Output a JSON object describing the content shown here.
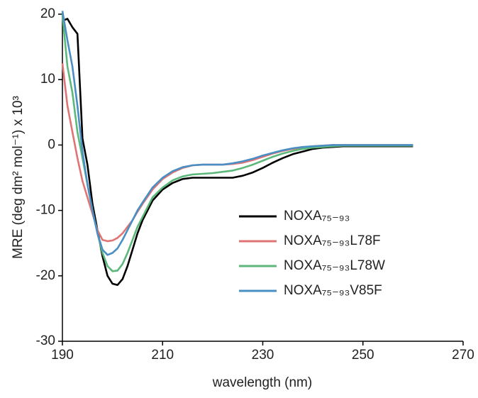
{
  "chart_data": {
    "type": "line",
    "x_label": "wavelength (nm)",
    "y_label": "MRE (deg dm² mol⁻¹) x 10³",
    "x": [
      190,
      191,
      192,
      193,
      194,
      195,
      196,
      197,
      198,
      199,
      200,
      201,
      202,
      203,
      204,
      205,
      206,
      208,
      210,
      212,
      214,
      216,
      218,
      220,
      222,
      224,
      226,
      228,
      230,
      232,
      234,
      236,
      238,
      240,
      242,
      244,
      246,
      248,
      250,
      255,
      260
    ],
    "series": [
      {
        "name": "NOXA₇₅₋₉₃",
        "color": "#000000",
        "values": [
          19,
          19.3,
          18,
          17,
          1,
          -3,
          -9,
          -13,
          -17,
          -20,
          -21.2,
          -21.4,
          -20.5,
          -18.5,
          -16,
          -13.5,
          -11.5,
          -8.5,
          -6.8,
          -5.8,
          -5.2,
          -5,
          -5,
          -5,
          -5,
          -5,
          -4.7,
          -4.2,
          -3.5,
          -2.7,
          -2,
          -1.4,
          -1,
          -0.6,
          -0.4,
          -0.3,
          -0.2,
          -0.2,
          -0.2,
          -0.2,
          -0.2
        ]
      },
      {
        "name": "NOXA₇₅₋₉₃L78F",
        "color": "#e07474",
        "values": [
          12.5,
          6,
          2,
          -2,
          -5.5,
          -8,
          -10.5,
          -13,
          -14.5,
          -14.7,
          -14.6,
          -14.2,
          -13.5,
          -12.5,
          -11.5,
          -10.2,
          -9,
          -6.8,
          -5.2,
          -4.2,
          -3.5,
          -3.1,
          -3,
          -3,
          -3,
          -2.9,
          -2.7,
          -2.3,
          -1.8,
          -1.3,
          -0.9,
          -0.6,
          -0.4,
          -0.2,
          -0.1,
          0,
          0,
          0,
          0,
          0,
          0
        ]
      },
      {
        "name": "NOXA₇₅₋₉₃L78W",
        "color": "#5cb87a",
        "values": [
          20,
          12,
          8,
          2,
          -2,
          -6,
          -10,
          -13.5,
          -16.5,
          -18.5,
          -19.3,
          -19.2,
          -18.2,
          -16.5,
          -14.5,
          -12.5,
          -11,
          -8,
          -6.5,
          -5.4,
          -4.8,
          -4.5,
          -4.4,
          -4.3,
          -4.1,
          -3.9,
          -3.5,
          -3,
          -2.4,
          -1.8,
          -1.3,
          -0.9,
          -0.6,
          -0.4,
          -0.3,
          -0.2,
          -0.1,
          -0.1,
          -0.1,
          -0.1,
          -0.1
        ]
      },
      {
        "name": "NOXA₇₅₋₉₃V85F",
        "color": "#4a8fc4",
        "values": [
          20.5,
          16,
          12,
          6,
          -1,
          -6,
          -10,
          -13.5,
          -16,
          -16.8,
          -16.5,
          -15.8,
          -14.5,
          -13,
          -11.5,
          -10,
          -8.8,
          -6.5,
          -5,
          -4,
          -3.4,
          -3.1,
          -3,
          -3,
          -3,
          -2.8,
          -2.5,
          -2.1,
          -1.6,
          -1.2,
          -0.8,
          -0.5,
          -0.3,
          -0.2,
          -0.1,
          0,
          0,
          0,
          0,
          0,
          0
        ]
      }
    ],
    "xlim": [
      190,
      270
    ],
    "xticks": [
      190,
      210,
      230,
      250,
      270
    ],
    "ylim": [
      -30,
      20
    ],
    "yticks": [
      -30,
      -20,
      -10,
      0,
      10,
      20
    ]
  }
}
